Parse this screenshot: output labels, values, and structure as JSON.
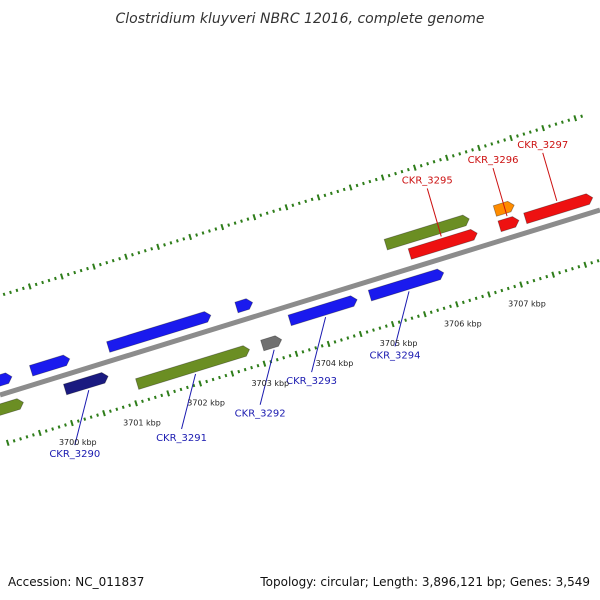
{
  "title": "Clostridium kluyveri NBRC 12016, complete genome",
  "footer": {
    "accession": "Accession: NC_011837",
    "summary": "Topology: circular; Length: 3,896,121 bp; Genes: 3,549"
  },
  "colors": {
    "backbone": "#8c8c8c",
    "tick": "#2e7d1a",
    "cds_blue": "#1a1aee",
    "cds_green": "#6b8e23",
    "cds_red": "#ee1111",
    "cds_orange": "#ff8c00",
    "cds_navy": "#1a1a80",
    "cds_gray": "#707070",
    "label_blue": "#1a1ab0",
    "label_red": "#cc1111"
  },
  "ticks": [
    {
      "label": "3700 kbp",
      "kbp": 3700
    },
    {
      "label": "3701 kbp",
      "kbp": 3701
    },
    {
      "label": "3702 kbp",
      "kbp": 3702
    },
    {
      "label": "3703 kbp",
      "kbp": 3703
    },
    {
      "label": "3704 kbp",
      "kbp": 3704
    },
    {
      "label": "3705 kbp",
      "kbp": 3705
    },
    {
      "label": "3706 kbp",
      "kbp": 3706
    },
    {
      "label": "3707 kbp",
      "kbp": 3707
    }
  ],
  "genes": [
    {
      "id": "CKR_3290",
      "label": "CKR_3290",
      "color": "cds_navy",
      "track": "rev_inner",
      "start": 3700.05,
      "end": 3700.72,
      "strand": "+",
      "labeled": true,
      "side": "below"
    },
    {
      "id": "CKR_3291",
      "label": "CKR_3291",
      "color": "cds_green",
      "track": "rev_outer",
      "start": 3701.1,
      "end": 3702.85,
      "strand": "+",
      "labeled": true,
      "side": "below"
    },
    {
      "id": "CKR_3292",
      "label": "CKR_3292",
      "color": "cds_gray",
      "track": "rev_outer",
      "start": 3703.05,
      "end": 3703.35,
      "strand": "+",
      "labeled": true,
      "side": "below"
    },
    {
      "id": "CKR_3293",
      "label": "CKR_3293",
      "color": "cds_blue",
      "track": "rev_inner",
      "start": 3703.55,
      "end": 3704.6,
      "strand": "+",
      "labeled": true,
      "side": "below"
    },
    {
      "id": "CKR_3294",
      "label": "CKR_3294",
      "color": "cds_blue",
      "track": "rev_inner",
      "start": 3704.8,
      "end": 3705.95,
      "strand": "+",
      "labeled": true,
      "side": "below"
    },
    {
      "id": "CKR_3295",
      "label": "CKR_3295",
      "color": "cds_red",
      "track": "fwd_inner",
      "start": 3705.55,
      "end": 3706.6,
      "strand": "+",
      "labeled": true,
      "side": "above"
    },
    {
      "id": "CKR_3296",
      "label": "CKR_3296",
      "color": "cds_red",
      "track": "fwd_inner",
      "start": 3706.95,
      "end": 3707.25,
      "strand": "+",
      "labeled": true,
      "side": "above"
    },
    {
      "id": "CKR_3297",
      "label": "CKR_3297",
      "color": "cds_red",
      "track": "fwd_inner",
      "start": 3707.35,
      "end": 3708.4,
      "strand": "+",
      "labeled": true,
      "side": "above"
    }
  ]
}
